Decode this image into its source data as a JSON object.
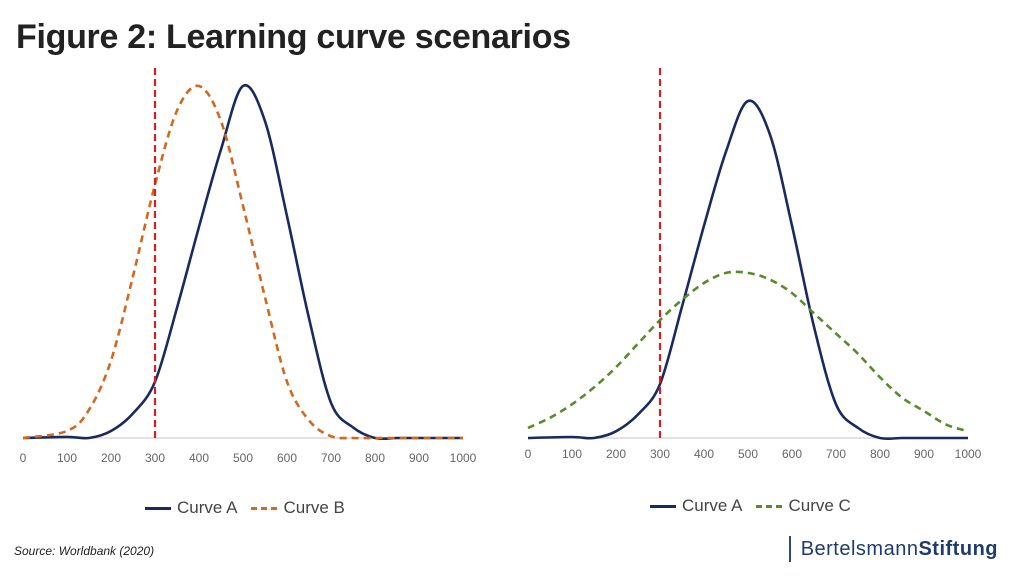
{
  "title": "Figure 2: Learning curve scenarios",
  "source": "Source: Worldbank (2020)",
  "brand": {
    "part1": "Bertelsmann",
    "part2": "Stiftung"
  },
  "colors": {
    "curve_a": "#1b2a5e",
    "curve_b": "#d2691e",
    "curve_c": "#5a8a2c",
    "threshold": "#d41f26",
    "axis": "#d9d9d9"
  },
  "chart_data": [
    {
      "type": "line",
      "xlim": [
        0,
        1000
      ],
      "ylim": [
        0,
        1
      ],
      "x_ticks": [
        0,
        100,
        200,
        300,
        400,
        500,
        600,
        700,
        800,
        900,
        1000
      ],
      "threshold_x": 300,
      "series": [
        {
          "name": "Curve A",
          "style": "solid",
          "color": "#1b2a5e",
          "x": [
            0,
            100,
            150,
            200,
            250,
            300,
            350,
            400,
            450,
            500,
            550,
            600,
            650,
            700,
            750,
            800,
            850,
            900,
            1000
          ],
          "y": [
            0,
            0.003,
            0,
            0.02,
            0.07,
            0.16,
            0.37,
            0.6,
            0.82,
            1.0,
            0.9,
            0.63,
            0.34,
            0.1,
            0.03,
            0,
            0,
            0,
            0
          ]
        },
        {
          "name": "Curve B",
          "style": "dashed",
          "color": "#d2691e",
          "x": [
            0,
            100,
            150,
            200,
            250,
            300,
            350,
            400,
            450,
            500,
            550,
            600,
            650,
            700,
            750,
            800,
            850,
            900,
            1000
          ],
          "y": [
            0,
            0.02,
            0.08,
            0.22,
            0.46,
            0.72,
            0.93,
            1.0,
            0.9,
            0.66,
            0.4,
            0.16,
            0.05,
            0.005,
            0,
            0,
            0,
            0,
            0
          ]
        }
      ]
    },
    {
      "type": "line",
      "xlim": [
        0,
        1000
      ],
      "ylim": [
        0,
        1
      ],
      "x_ticks": [
        0,
        100,
        200,
        300,
        400,
        500,
        600,
        700,
        800,
        900,
        1000
      ],
      "threshold_x": 300,
      "series": [
        {
          "name": "Curve A",
          "style": "solid",
          "color": "#1b2a5e",
          "x": [
            0,
            100,
            150,
            200,
            250,
            300,
            350,
            400,
            450,
            500,
            550,
            600,
            650,
            700,
            750,
            800,
            850,
            900,
            1000
          ],
          "y": [
            0,
            0.003,
            0,
            0.02,
            0.07,
            0.16,
            0.39,
            0.63,
            0.85,
            1.0,
            0.9,
            0.63,
            0.33,
            0.1,
            0.03,
            0,
            0,
            0,
            0
          ]
        },
        {
          "name": "Curve C",
          "style": "dashed",
          "color": "#5a8a2c",
          "x": [
            0,
            50,
            100,
            150,
            200,
            250,
            300,
            350,
            400,
            450,
            500,
            550,
            600,
            650,
            700,
            750,
            800,
            850,
            900,
            950,
            1000
          ],
          "y": [
            0.03,
            0.06,
            0.1,
            0.15,
            0.21,
            0.28,
            0.35,
            0.41,
            0.46,
            0.49,
            0.49,
            0.47,
            0.43,
            0.37,
            0.31,
            0.25,
            0.18,
            0.12,
            0.08,
            0.04,
            0.02
          ]
        }
      ]
    }
  ],
  "legends": [
    {
      "items": [
        {
          "label": "Curve A"
        },
        {
          "label": "Curve B"
        }
      ]
    },
    {
      "items": [
        {
          "label": "Curve A"
        },
        {
          "label": "Curve C"
        }
      ]
    }
  ]
}
